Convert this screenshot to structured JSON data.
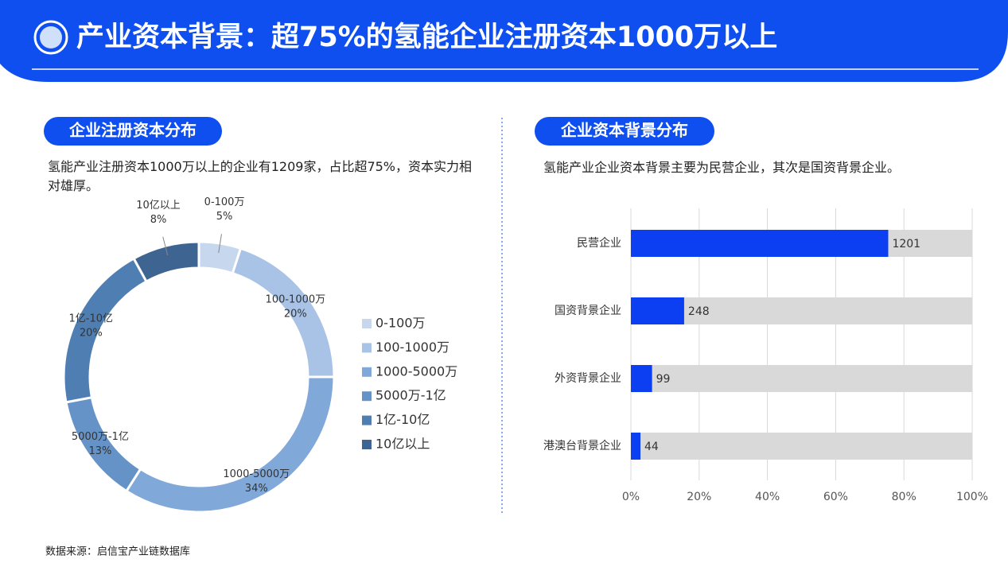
{
  "header": {
    "title": "产业资本背景：超75%的氢能企业注册资本1000万以上"
  },
  "chart_data": [
    {
      "type": "donut",
      "heading": "企业注册资本分布",
      "description": "氢能产业注册资本1000万以上的企业有1209家，占比超75%，资本实力相对雄厚。",
      "categories": [
        "0-100万",
        "100-1000万",
        "1000-5000万",
        "5000万-1亿",
        "1亿-10亿",
        "10亿以上"
      ],
      "values": [
        5,
        20,
        34,
        13,
        20,
        8
      ],
      "value_labels": [
        "5%",
        "20%",
        "34%",
        "13%",
        "20%",
        "8%"
      ],
      "colors": [
        "#c6d7ee",
        "#a9c3e6",
        "#80a8d9",
        "#6593c8",
        "#4f7fb2",
        "#3e6591"
      ],
      "legend": "right"
    },
    {
      "type": "hbar",
      "heading": "企业资本背景分布",
      "description": "氢能产业企业资本背景主要为民营企业，其次是国资背景企业。",
      "categories": [
        "民营企业",
        "国资背景企业",
        "外资背景企业",
        "港澳台背景企业"
      ],
      "values": [
        75.4,
        15.6,
        6.2,
        2.8
      ],
      "data_labels": [
        1201,
        248,
        99,
        44
      ],
      "color": "#0c3ff2",
      "track_color": "#d9d9d9",
      "xlim": [
        0,
        100
      ],
      "xticks": [
        {
          "value": 0,
          "label": "0%"
        },
        {
          "value": 20,
          "label": "20%"
        },
        {
          "value": 40,
          "label": "40%"
        },
        {
          "value": 60,
          "label": "60%"
        },
        {
          "value": 80,
          "label": "80%"
        },
        {
          "value": 100,
          "label": "100%"
        }
      ],
      "grid": true
    }
  ],
  "source": "数据来源：启信宝产业链数据库"
}
